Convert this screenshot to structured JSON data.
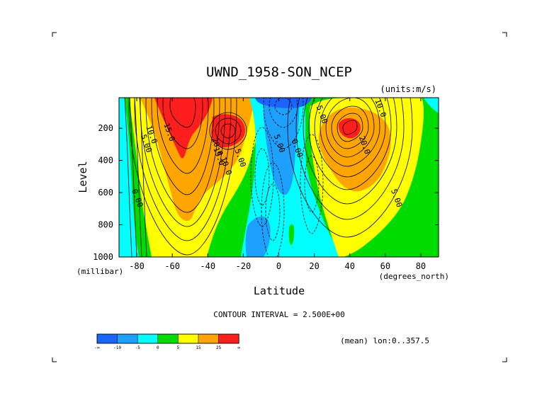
{
  "chart_data": {
    "type": "contour",
    "title": "UWND_1958-SON_NCEP",
    "units_label": "(units:m/s)",
    "xlabel": "Latitude",
    "x_units": "(degrees_north)",
    "ylabel": "Level",
    "y_units": "(millibar)",
    "xlim": [
      -90,
      90
    ],
    "ylim": [
      1000,
      10
    ],
    "x_ticks": [
      -80,
      -60,
      -40,
      -20,
      0,
      20,
      40,
      60,
      80
    ],
    "y_ticks": [
      200,
      400,
      600,
      800,
      1000
    ],
    "contour_interval_label": "CONTOUR INTERVAL = 2.500E+00",
    "mean_label": "(mean) lon:0..357.5",
    "colorbar": {
      "colors": [
        "#1c64ff",
        "#1ea0ff",
        "#00ffff",
        "#00dc00",
        "#ffff00",
        "#ffa500",
        "#ff1e1e"
      ],
      "tick_labels": [
        "-∞",
        "-10",
        "-5",
        "0",
        "5",
        "15",
        "25",
        "∞"
      ]
    },
    "features": [
      {
        "kind": "jet",
        "lat": -55,
        "level": 120,
        "max": 30,
        "label_values": [
          "10.0",
          "15.0",
          "20.0"
        ]
      },
      {
        "kind": "jet",
        "lat": -30,
        "level": 200,
        "max": 25
      },
      {
        "kind": "jet",
        "lat": 42,
        "level": 200,
        "max": 25,
        "label_values": [
          "20.0",
          "10.0"
        ]
      },
      {
        "kind": "easterly",
        "lat": 5,
        "level": 150,
        "min": -10,
        "label_values": [
          "-5.00"
        ]
      }
    ],
    "contour_labels": [
      {
        "text": "10.0",
        "lat": -73,
        "level": 245
      },
      {
        "text": "5.00",
        "lat": -76,
        "level": 300
      },
      {
        "text": "15.0",
        "lat": -63,
        "level": 230
      },
      {
        "text": "20.0",
        "lat": -36,
        "level": 320
      },
      {
        "text": "15.0",
        "lat": -35,
        "level": 380
      },
      {
        "text": "10.0",
        "lat": -31,
        "level": 440
      },
      {
        "text": "5.00",
        "lat": -23,
        "level": 390
      },
      {
        "text": "0.00",
        "lat": -81,
        "level": 640
      },
      {
        "text": "5.00",
        "lat": -1,
        "level": 300
      },
      {
        "text": "0.00",
        "lat": 9,
        "level": 330
      },
      {
        "text": "5.00",
        "lat": 23,
        "level": 120
      },
      {
        "text": "10.0",
        "lat": 56,
        "level": 80
      },
      {
        "text": "20.0",
        "lat": 47,
        "level": 310
      },
      {
        "text": "5.00",
        "lat": 65,
        "level": 640
      }
    ]
  }
}
